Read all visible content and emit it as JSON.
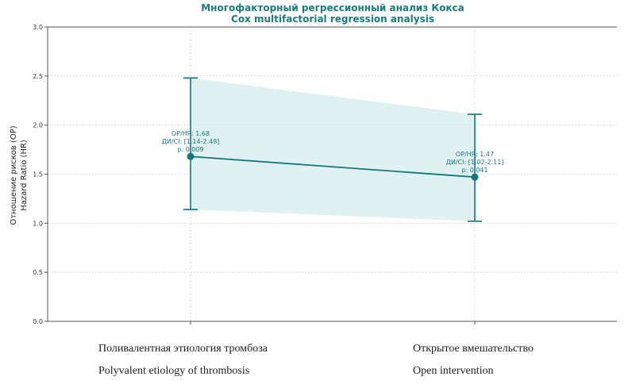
{
  "chart_data": {
    "type": "line",
    "title": "Многофакторный регрессионный анализ Кокса",
    "subtitle": "Cox multifactorial regression analysis",
    "ylabel": "Отношение рисков (ОР)",
    "ylabel2": "Hazard Ratio (HR)",
    "ylim": [
      0,
      3
    ],
    "yticks": [
      "0.0",
      "0.5",
      "1.0",
      "1.5",
      "2.0",
      "2.5",
      "3.0"
    ],
    "grid": true,
    "categories": [
      {
        "ru": "Поливалентная этиология тромбоза",
        "en": "Polyvalent etiology of thrombosis"
      },
      {
        "ru": "Открытое вмешательство",
        "en": "Open intervention"
      }
    ],
    "series": [
      {
        "values": [
          1.68,
          1.47
        ],
        "ci_low": [
          1.14,
          1.02
        ],
        "ci_high": [
          2.48,
          2.11
        ]
      }
    ],
    "annotations": [
      {
        "line1": "ОР/HR: 1.68",
        "line2": "ДИ/CI: [1.14-2.48]",
        "line3": "p: 0.009"
      },
      {
        "line1": "ОР/HR: 1.47",
        "line2": "ДИ/CI: [1.02-2.11]",
        "line3": "p: 0.041"
      }
    ],
    "colors": {
      "line": "#13777d",
      "band": "#d6ecec",
      "grid": "#cfcfcf",
      "axis": "#555555",
      "title": "#1b7a80"
    }
  }
}
